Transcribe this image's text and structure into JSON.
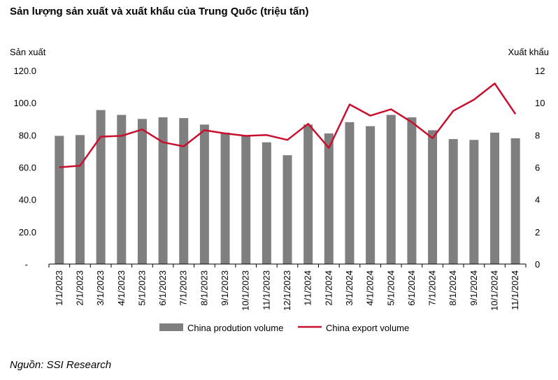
{
  "title": "Sản lượng sản xuất và xuất khẩu của Trung Quốc (triệu tấn)",
  "source": "Nguồn: SSI Research",
  "chart_data": {
    "type": "bar",
    "title": "Sản lượng sản xuất và xuất khẩu của Trung Quốc (triệu tấn)",
    "categories": [
      "1/1/2023",
      "2/1/2023",
      "3/1/2023",
      "4/1/2023",
      "5/1/2023",
      "6/1/2023",
      "7/1/2023",
      "8/1/2023",
      "9/1/2023",
      "10/1/2023",
      "11/1/2023",
      "12/1/2023",
      "1/1/2024",
      "2/1/2024",
      "3/1/2024",
      "4/1/2024",
      "5/1/2024",
      "6/1/2024",
      "7/1/2024",
      "8/1/2024",
      "9/1/2024",
      "10/1/2024",
      "11/1/2024"
    ],
    "series": [
      {
        "name": "China prodution volume",
        "type": "bar",
        "axis": "left",
        "color": "#7f7f7f",
        "values": [
          79.5,
          80.0,
          95.5,
          92.5,
          90.0,
          91.0,
          90.5,
          86.5,
          81.5,
          79.5,
          75.5,
          67.5,
          86.5,
          81.0,
          88.0,
          85.5,
          92.5,
          91.0,
          83.0,
          77.5,
          77.0,
          81.5,
          78.0
        ]
      },
      {
        "name": "China export volume",
        "type": "line",
        "axis": "right",
        "color": "#c8102e",
        "values": [
          6.0,
          6.1,
          7.9,
          7.95,
          8.35,
          7.55,
          7.3,
          8.3,
          8.1,
          7.95,
          8.0,
          7.7,
          8.7,
          7.2,
          9.9,
          9.2,
          9.6,
          8.8,
          7.8,
          9.5,
          10.2,
          11.2,
          9.3
        ]
      }
    ],
    "left_axis": {
      "label": "Sản xuất",
      "ticks": [
        "-",
        "20.0",
        "40.0",
        "60.0",
        "80.0",
        "100.0",
        "120.0"
      ],
      "min": 0,
      "max": 120
    },
    "right_axis": {
      "label": "Xuất khẩu",
      "ticks": [
        "0",
        "2",
        "4",
        "6",
        "8",
        "10",
        "12"
      ],
      "min": 0,
      "max": 12
    },
    "grid": false,
    "legend_position": "bottom"
  }
}
